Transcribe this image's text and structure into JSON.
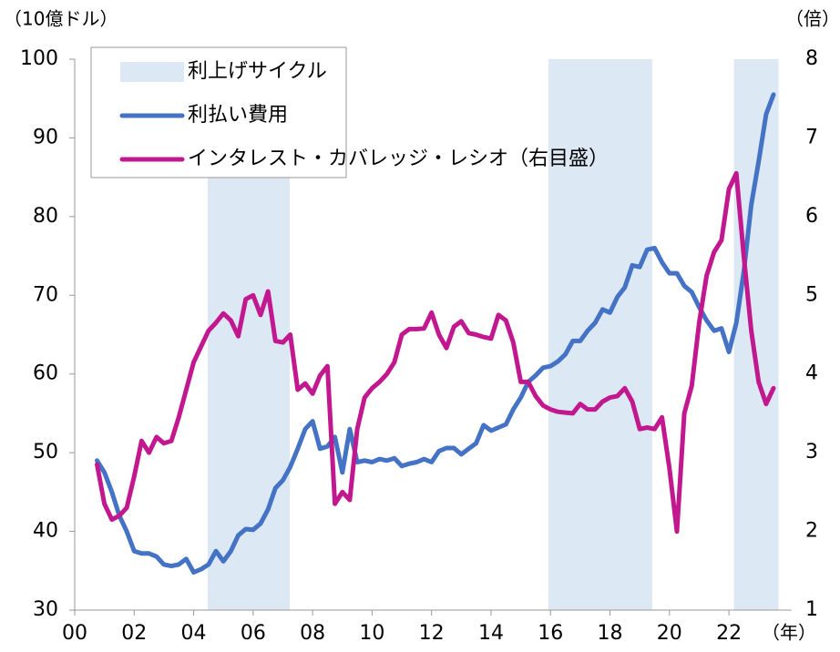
{
  "chart_data": {
    "type": "line",
    "y_label": "（10億ドル）",
    "y2_label": "（倍）",
    "x_label": "（年）",
    "shade_name": "利上げサイクル",
    "shade_color": "#dde8f5",
    "shaded_periods": [
      {
        "start": 4.47,
        "end": 7.23
      },
      {
        "start": 15.93,
        "end": 19.42
      },
      {
        "start": 22.17,
        "end": 23.67
      }
    ],
    "xlim": [
      0,
      24.1
    ],
    "xticks": [
      {
        "value": 0,
        "label": "00"
      },
      {
        "value": 2,
        "label": "02"
      },
      {
        "value": 4,
        "label": "04"
      },
      {
        "value": 6,
        "label": "06"
      },
      {
        "value": 8,
        "label": "08"
      },
      10,
      12,
      14,
      16,
      18,
      20,
      22
    ],
    "ylim": [
      30,
      100
    ],
    "yticks": [
      30,
      40,
      50,
      60,
      70,
      80,
      90,
      100
    ],
    "y2lim": [
      1,
      8
    ],
    "y2ticks": [
      1,
      2,
      3,
      4,
      5,
      6,
      7,
      8
    ],
    "x": [
      0.75,
      1,
      1.25,
      1.5,
      1.75,
      2,
      2.25,
      2.5,
      2.75,
      3,
      3.25,
      3.5,
      3.75,
      4,
      4.25,
      4.5,
      4.75,
      5,
      5.25,
      5.5,
      5.75,
      6,
      6.25,
      6.5,
      6.75,
      7,
      7.25,
      7.5,
      7.75,
      8,
      8.25,
      8.5,
      8.75,
      9,
      9.25,
      9.5,
      9.75,
      10,
      10.25,
      10.5,
      10.75,
      11,
      11.25,
      11.5,
      11.75,
      12,
      12.25,
      12.5,
      12.75,
      13,
      13.25,
      13.5,
      13.75,
      14,
      14.25,
      14.5,
      14.75,
      15,
      15.25,
      15.5,
      15.75,
      16,
      16.25,
      16.5,
      16.75,
      17,
      17.25,
      17.5,
      17.75,
      18,
      18.25,
      18.5,
      18.75,
      19,
      19.25,
      19.5,
      19.75,
      20,
      20.25,
      20.5,
      20.75,
      21,
      21.25,
      21.5,
      21.75,
      22,
      22.25,
      22.5,
      22.75,
      23,
      23.25,
      23.5
    ],
    "series": [
      {
        "name": "利払い費用",
        "color": "#4472c4",
        "values": [
          49,
          47.5,
          45,
          42,
          40,
          37.5,
          37.2,
          37.2,
          36.8,
          35.8,
          35.6,
          35.8,
          36.5,
          34.8,
          35.2,
          35.8,
          37.5,
          36.2,
          37.5,
          39.5,
          40.3,
          40.2,
          41,
          42.8,
          45.5,
          46.5,
          48.2,
          50.5,
          53,
          54,
          50.5,
          50.8,
          52,
          47.5,
          53,
          48.8,
          49,
          48.8,
          49.2,
          49,
          49.3,
          48.3,
          48.6,
          48.8,
          49.2,
          48.8,
          50.2,
          50.6,
          50.6,
          49.8,
          50.5,
          51.2,
          53.5,
          52.8,
          53.2,
          53.6,
          55.5,
          57,
          59,
          59.8,
          60.8,
          61,
          61.6,
          62.5,
          64.2,
          64.2,
          65.5,
          66.5,
          68.2,
          67.8,
          69.8,
          71,
          73.8,
          73.6,
          75.8,
          76,
          74.2,
          72.8,
          72.8,
          71.2,
          70.4,
          68.5,
          66.8,
          65.5,
          65.8,
          62.8,
          66.5,
          73,
          81.5,
          87,
          93,
          95.5
        ]
      },
      {
        "name": "インタレスト・カバレッジ・レシオ（右目盛）",
        "color": "#c2188f",
        "axis": "y2",
        "values": [
          2.85,
          2.35,
          2.15,
          2.2,
          2.3,
          2.7,
          3.15,
          3.0,
          3.2,
          3.12,
          3.15,
          3.45,
          3.8,
          4.15,
          4.35,
          4.55,
          4.65,
          4.77,
          4.68,
          4.48,
          4.95,
          5.0,
          4.75,
          5.05,
          4.42,
          4.4,
          4.5,
          3.8,
          3.88,
          3.75,
          3.98,
          4.1,
          2.35,
          2.5,
          2.4,
          3.3,
          3.7,
          3.82,
          3.9,
          4.0,
          4.15,
          4.5,
          4.57,
          4.57,
          4.58,
          4.78,
          4.5,
          4.33,
          4.6,
          4.67,
          4.52,
          4.5,
          4.47,
          4.45,
          4.75,
          4.68,
          4.4,
          3.9,
          3.9,
          3.72,
          3.6,
          3.55,
          3.52,
          3.51,
          3.5,
          3.62,
          3.55,
          3.55,
          3.65,
          3.7,
          3.72,
          3.82,
          3.65,
          3.3,
          3.32,
          3.3,
          3.45,
          2.8,
          2.0,
          3.5,
          3.85,
          4.65,
          5.25,
          5.55,
          5.7,
          6.35,
          6.55,
          5.5,
          4.55,
          3.9,
          3.62,
          3.82
        ]
      }
    ]
  }
}
